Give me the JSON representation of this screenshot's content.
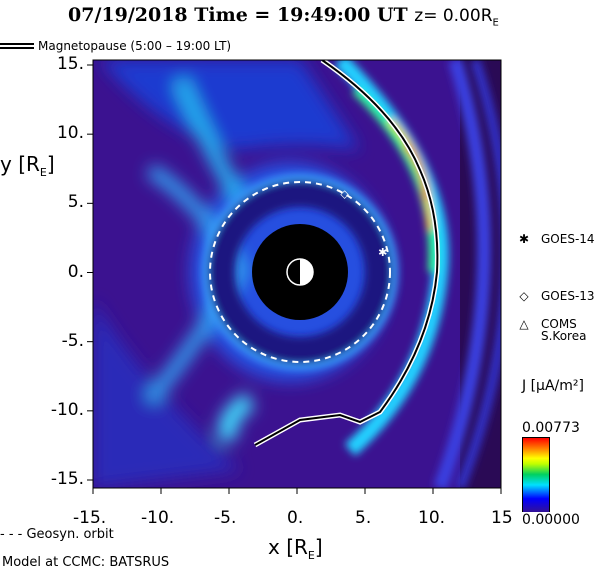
{
  "title": {
    "date": "07/19/2018",
    "time_label": "Time = 19:49:00 UT",
    "z_label": "z= 0.00R",
    "z_sub": "E"
  },
  "legend": {
    "magnetopause": "Magnetopause (5:00 – 19:00 LT)",
    "geosync": "- - - Geosyn. orbit"
  },
  "axes": {
    "xlabel": "x [R",
    "ylabel": "y [R",
    "sub": "E",
    "xticks": [
      "-15.",
      "-10.",
      "-5.",
      "0.",
      "5.",
      "10.",
      "15"
    ],
    "yticks": [
      "15.",
      "10.",
      "5.",
      "0.",
      "-5.",
      "-10.",
      "-15."
    ],
    "xrange": [
      -15,
      15
    ],
    "yrange": [
      -15,
      15
    ]
  },
  "satellites": [
    {
      "name": "GOES-14",
      "marker": "✱",
      "x": 6.3,
      "y": 1.5
    },
    {
      "name": "GOES-13",
      "marker": "◇",
      "x": 3.5,
      "y": 5.7
    },
    {
      "name": "COMS",
      "name2": "S.Korea",
      "marker": "△"
    }
  ],
  "colorbar": {
    "label": "J [μA/m²]",
    "max": "0.00773",
    "min": "0.00000"
  },
  "credit": "Model at CCMC: BATSRUS",
  "colors": {
    "background": "#3b1290",
    "earth": "#000000",
    "magnetopause": "#000000"
  }
}
